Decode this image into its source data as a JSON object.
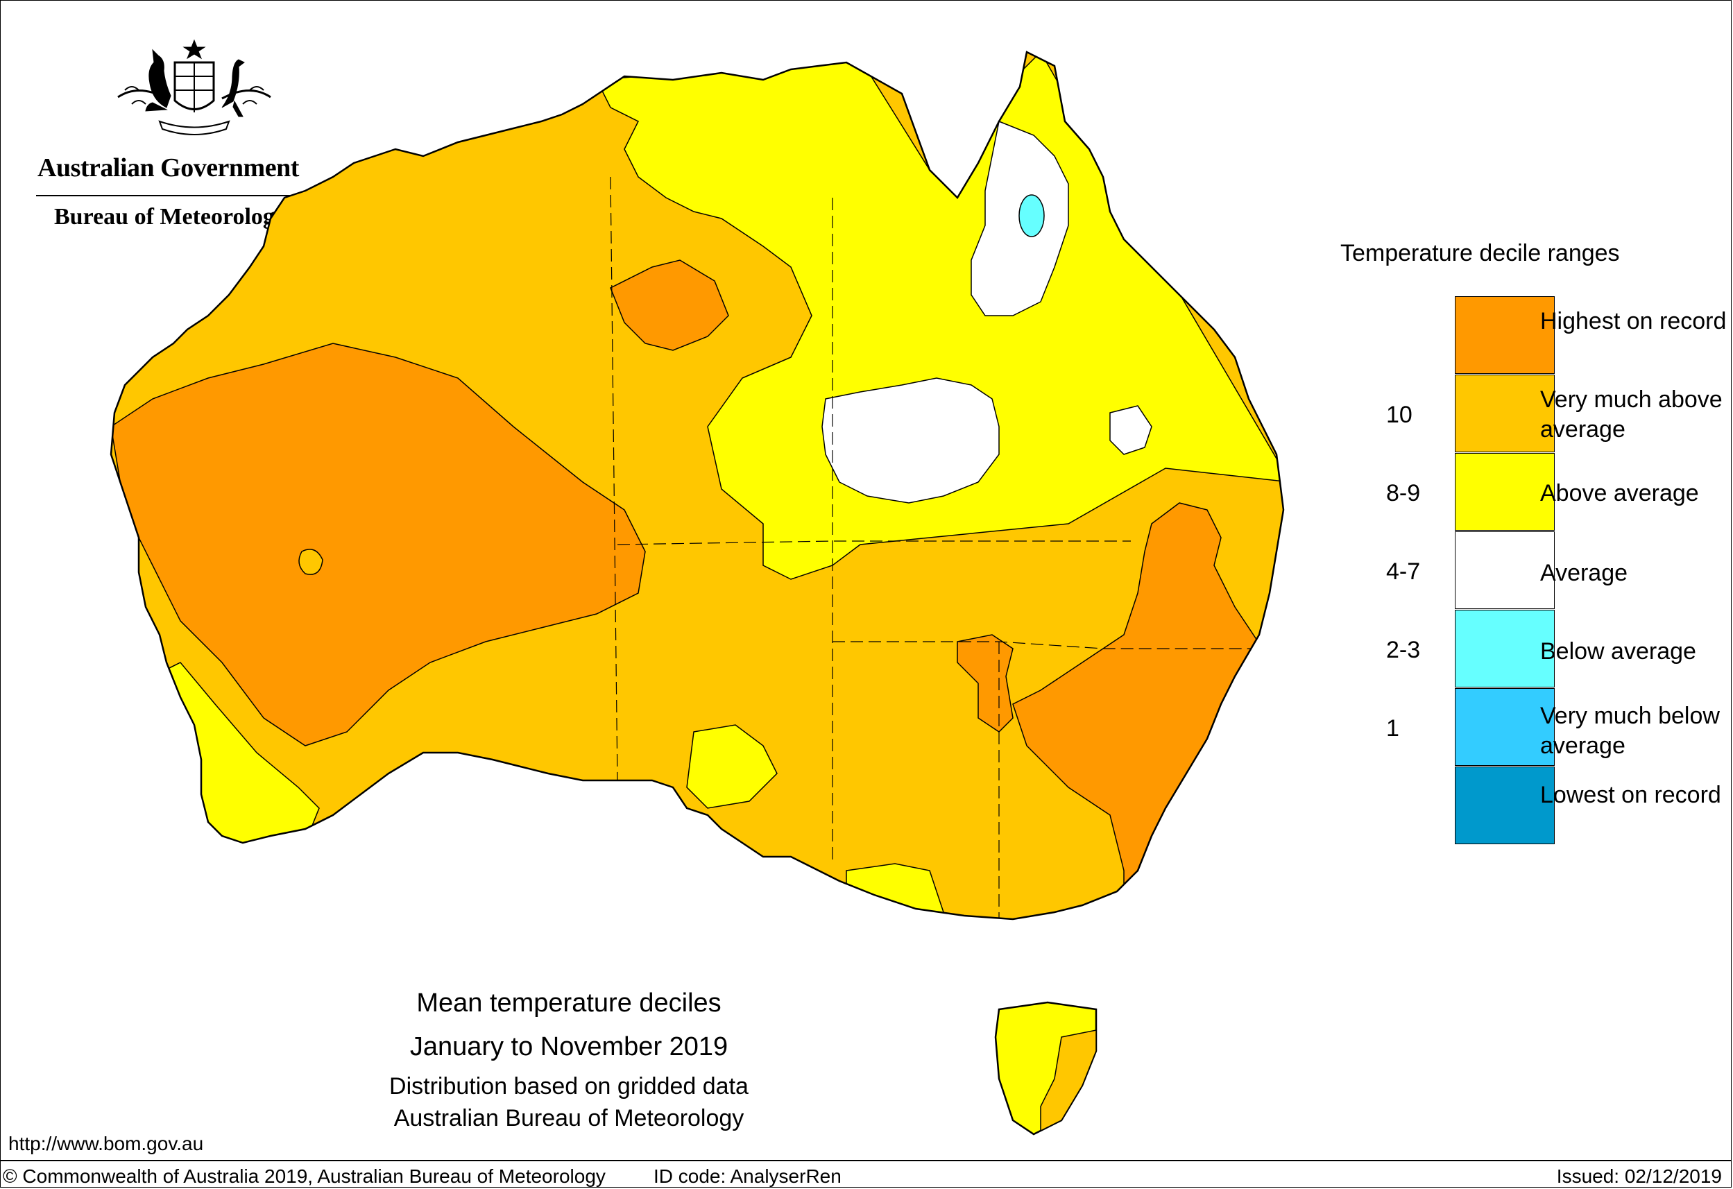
{
  "organisation": {
    "government": "Australian Government",
    "bureau": "Bureau of Meteorology"
  },
  "legend": {
    "title": "Temperature decile ranges",
    "categories": [
      {
        "label": "Highest on record",
        "color": "#FF9900"
      },
      {
        "label": "Very much above average",
        "color": "#FFC700"
      },
      {
        "label": "Above average",
        "color": "#FFFF00"
      },
      {
        "label": "Average",
        "color": "#FFFFFF"
      },
      {
        "label": "Below average",
        "color": "#66FFFF"
      },
      {
        "label": "Very much below average",
        "color": "#33CCFF"
      },
      {
        "label": "Lowest on record",
        "color": "#0099CC"
      }
    ],
    "ranges": [
      "10",
      "8-9",
      "4-7",
      "2-3",
      "1"
    ]
  },
  "caption": {
    "title": "Mean temperature deciles",
    "period": "January to November 2019",
    "note": "Distribution based on gridded data",
    "source": "Australian Bureau of Meteorology"
  },
  "footer": {
    "url": "http://www.bom.gov.au",
    "copyright": "© Commonwealth of Australia 2019, Australian Bureau of Meteorology",
    "id_code": "ID code: AnalyserRen",
    "issued": "Issued: 02/12/2019"
  }
}
